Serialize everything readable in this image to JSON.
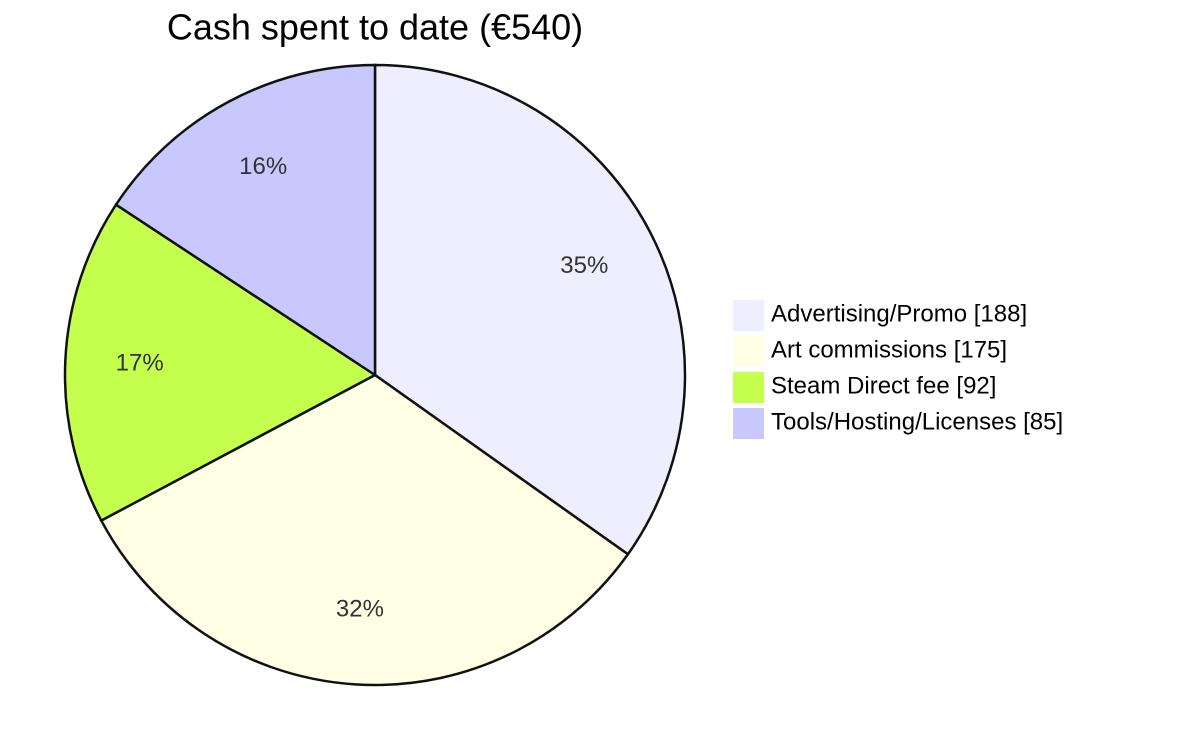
{
  "chart_data": {
    "type": "pie",
    "title": "Cash spent to date (€540)",
    "categories": [
      "Advertising/Promo [188]",
      "Art commissions [175]",
      "Steam Direct fee [92]",
      "Tools/Hosting/Licenses [85]"
    ],
    "values": [
      188,
      175,
      92,
      85
    ],
    "value_labels": [
      "35%",
      "32%",
      "17%",
      "16%"
    ],
    "colors": [
      "#eeeeff",
      "#ffffe6",
      "#c4ff4d",
      "#c8c8ff"
    ],
    "legend": "right"
  }
}
